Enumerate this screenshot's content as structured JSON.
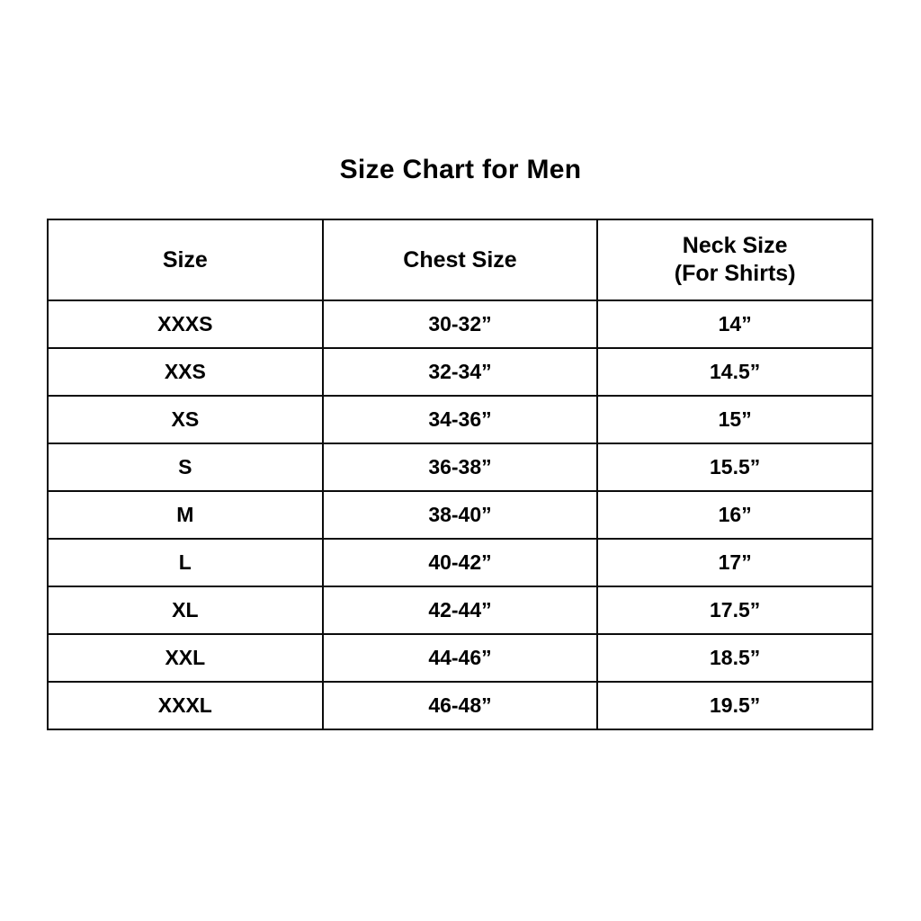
{
  "page": {
    "background_color": "#ffffff",
    "text_color": "#000000",
    "border_color": "#0b0b0b"
  },
  "title": "Size Chart for Men",
  "table": {
    "columns": [
      {
        "label": "Size",
        "sublabel": ""
      },
      {
        "label": "Chest Size",
        "sublabel": ""
      },
      {
        "label": "Neck Size",
        "sublabel": "(For Shirts)"
      }
    ],
    "rows": [
      {
        "size": "XXXS",
        "chest": "30-32”",
        "neck": "14”"
      },
      {
        "size": "XXS",
        "chest": "32-34”",
        "neck": "14.5”"
      },
      {
        "size": "XS",
        "chest": "34-36”",
        "neck": "15”"
      },
      {
        "size": "S",
        "chest": "36-38”",
        "neck": "15.5”"
      },
      {
        "size": "M",
        "chest": "38-40”",
        "neck": "16”"
      },
      {
        "size": "L",
        "chest": "40-42”",
        "neck": "17”"
      },
      {
        "size": "XL",
        "chest": "42-44”",
        "neck": "17.5”"
      },
      {
        "size": "XXL",
        "chest": "44-46”",
        "neck": "18.5”"
      },
      {
        "size": "XXXL",
        "chest": "46-48”",
        "neck": "19.5”"
      }
    ]
  }
}
